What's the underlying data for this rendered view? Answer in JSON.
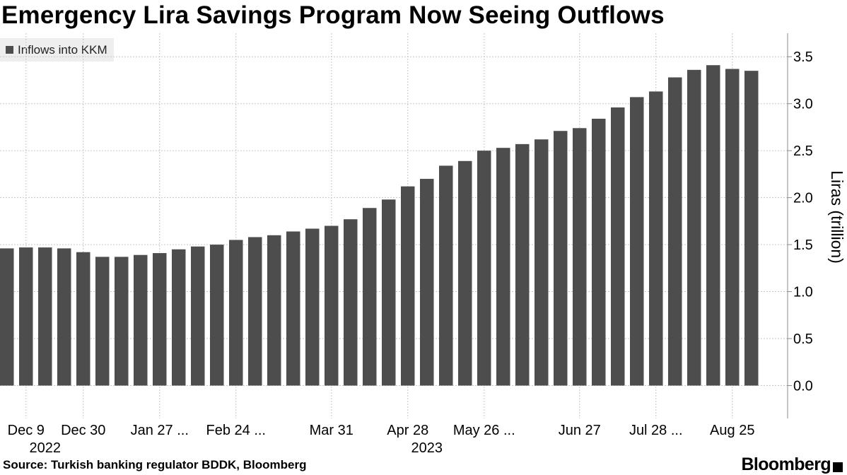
{
  "colors": {
    "bar": "#4d4d4d",
    "grid": "#c6c6c6",
    "axis": "#888888",
    "text": "#000000"
  },
  "chart_data": {
    "type": "bar",
    "title": "Emergency Lira Savings Program Now Seeing Outflows",
    "legend": {
      "label": "Inflows into KKM",
      "position": "top-left"
    },
    "ylabel": "Liras (trillion)",
    "xlabel": "",
    "ylim": [
      -0.35,
      3.75
    ],
    "yticks": [
      0.0,
      0.5,
      1.0,
      1.5,
      2.0,
      2.5,
      3.0,
      3.5
    ],
    "ytick_labels": [
      "0.0",
      "0.5",
      "1.0",
      "1.5",
      "2.0",
      "2.5",
      "3.0",
      "3.5"
    ],
    "x_tick_labels": [
      {
        "label": "Dec 9",
        "at": 1
      },
      {
        "label": "Dec 30",
        "at": 4
      },
      {
        "label": "Jan 27 ...",
        "at": 8
      },
      {
        "label": "Feb 24 ...",
        "at": 12
      },
      {
        "label": "Mar 31",
        "at": 17
      },
      {
        "label": "Apr 28",
        "at": 21
      },
      {
        "label": "May 26 ...",
        "at": 25
      },
      {
        "label": "Jun 27",
        "at": 30
      },
      {
        "label": "Jul 28 ...",
        "at": 34
      },
      {
        "label": "Aug 25",
        "at": 38
      }
    ],
    "year_labels": [
      {
        "label": "2022",
        "at": 2
      },
      {
        "label": "2023",
        "at": 22
      }
    ],
    "values": [
      1.46,
      1.47,
      1.47,
      1.46,
      1.42,
      1.37,
      1.37,
      1.39,
      1.41,
      1.45,
      1.48,
      1.5,
      1.55,
      1.58,
      1.6,
      1.64,
      1.67,
      1.7,
      1.77,
      1.89,
      1.98,
      2.12,
      2.2,
      2.34,
      2.39,
      2.5,
      2.53,
      2.57,
      2.62,
      2.71,
      2.74,
      2.84,
      2.96,
      3.07,
      3.13,
      3.28,
      3.36,
      3.41,
      3.37,
      3.35
    ]
  },
  "footer": {
    "source": "Source: Turkish banking regulator BDDK, Bloomberg",
    "brand": "Bloomberg"
  }
}
